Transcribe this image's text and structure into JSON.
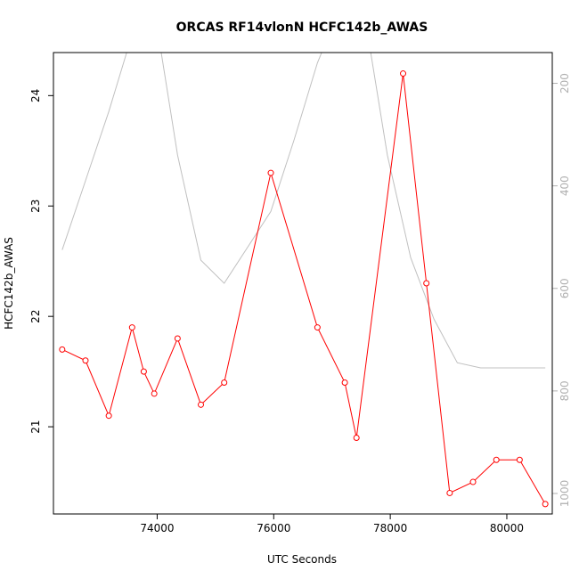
{
  "chart_data": {
    "type": "line",
    "title": "ORCAS RF14vlonN HCFC142b_AWAS",
    "xlabel": "UTC Seconds",
    "ylabel": "HCFC142b_AWAS",
    "xlim": [
      72220,
      80780
    ],
    "ylim": [
      20.21,
      24.39
    ],
    "y2lim": [
      1040,
      140
    ],
    "x_ticks": [
      74000,
      76000,
      78000,
      80000
    ],
    "y_ticks": [
      21,
      22,
      23,
      24
    ],
    "y2_ticks": [
      200,
      400,
      600,
      800,
      1000
    ],
    "series": [
      {
        "color": "#ff0000",
        "style": "line+open-circles",
        "axis": "left",
        "x": [
          72370,
          72770,
          73170,
          73570,
          73770,
          73950,
          74350,
          74750,
          75150,
          75950,
          76750,
          77220,
          77420,
          78220,
          78620,
          79020,
          79420,
          79820,
          80220,
          80660
        ],
        "values": [
          21.7,
          21.6,
          21.1,
          21.9,
          21.5,
          21.3,
          21.8,
          21.2,
          21.4,
          23.3,
          21.9,
          21.4,
          20.9,
          24.2,
          22.3,
          20.4,
          20.5,
          20.7,
          20.7,
          20.3
        ]
      },
      {
        "color": "#c0c0c0",
        "style": "line",
        "axis": "right",
        "x": [
          72370,
          72770,
          73170,
          73570,
          73950,
          74350,
          74750,
          75150,
          75550,
          75950,
          76350,
          76750,
          77150,
          77550,
          77950,
          78350,
          78750,
          79150,
          79550,
          79950,
          80350,
          80660
        ],
        "values": [
          525,
          390,
          255,
          105,
          55,
          340,
          545,
          590,
          520,
          450,
          310,
          160,
          50,
          60,
          340,
          540,
          660,
          745,
          755,
          755,
          755,
          755
        ]
      }
    ]
  }
}
